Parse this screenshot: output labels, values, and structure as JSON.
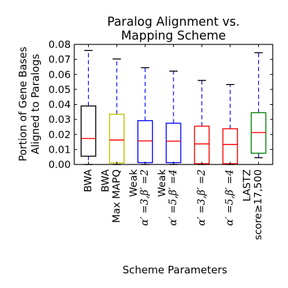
{
  "chart_data": {
    "type": "box",
    "title_lines": [
      "Paralog Alignment vs.",
      "Mapping Scheme"
    ],
    "ylabel_lines": [
      "Portion of Gene Bases",
      "Aligned to Paralogs"
    ],
    "xlabel": "Scheme Parameters",
    "ylim": [
      0,
      0.08
    ],
    "yticks": [
      "0.00",
      "0.01",
      "0.02",
      "0.03",
      "0.04",
      "0.05",
      "0.06",
      "0.07",
      "0.08"
    ],
    "grid": false,
    "boxes": [
      {
        "label_lines": [
          "BWA"
        ],
        "color": "#000000",
        "whisker_low": 0.0,
        "q1": 0.0055,
        "median": 0.0173,
        "q3": 0.039,
        "whisker_high": 0.076
      },
      {
        "label_lines": [
          "BWA",
          "Max MAPQ"
        ],
        "color": "#BFBF00",
        "whisker_low": 0.0,
        "q1": 0.001,
        "median": 0.0163,
        "q3": 0.0335,
        "whisker_high": 0.0703
      },
      {
        "label_lines": [
          "Weak",
          "α′ =3,β′ =2"
        ],
        "color": "#0000FF",
        "whisker_low": 0.0,
        "q1": 0.0012,
        "median": 0.0157,
        "q3": 0.0292,
        "whisker_high": 0.0645
      },
      {
        "label_lines": [
          "Weak",
          "α′ =5,β′ =4"
        ],
        "color": "#0000FF",
        "whisker_low": 0.0,
        "q1": 0.0012,
        "median": 0.0155,
        "q3": 0.0275,
        "whisker_high": 0.0622
      },
      {
        "label_lines": [
          "α′ =3,β′ =2"
        ],
        "color": "#FF0000",
        "whisker_low": 0.0,
        "q1": 0.0005,
        "median": 0.0137,
        "q3": 0.0255,
        "whisker_high": 0.056
      },
      {
        "label_lines": [
          "α′ =5,β′ =4"
        ],
        "color": "#FF0000",
        "whisker_low": 0.0,
        "q1": 0.0005,
        "median": 0.0133,
        "q3": 0.0238,
        "whisker_high": 0.0533
      },
      {
        "label_lines": [
          "LASTZ",
          "score≥17,500"
        ],
        "color": "#008000",
        "whisker_low": 0.0045,
        "q1": 0.0075,
        "median": 0.0213,
        "q3": 0.0345,
        "whisker_high": 0.0745
      }
    ],
    "median_color": "#FF0000",
    "whisker_color": "#0000FF"
  }
}
